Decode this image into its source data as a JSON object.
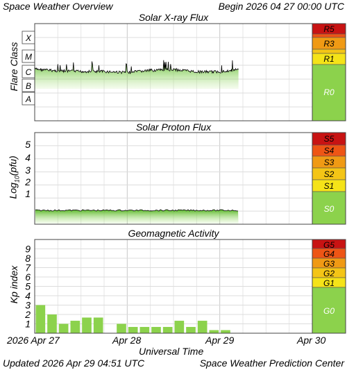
{
  "header": {
    "left": "Space Weather Overview",
    "right": "Begin 2026 04 27 00:00 UTC"
  },
  "footer": {
    "left": "Updated 2026 Apr 29 04:51 UTC",
    "right": "Space Weather Prediction Center"
  },
  "x_axis": {
    "label": "Universal Time",
    "tick_labels": [
      "2026 Apr 27",
      "Apr 28",
      "Apr 29",
      "Apr 30"
    ]
  },
  "colors": {
    "green": "#8cd24c",
    "yellow": "#f5e318",
    "orange": "#f09a14",
    "red_orange": "#ee5515",
    "red": "#c81313",
    "trace": "#000000"
  },
  "chart_data": [
    {
      "type": "line",
      "title": "Solar X-ray Flux",
      "ylabel": "Flare Class",
      "y_scale": "log",
      "y_tick_labels": [
        "X",
        "M",
        "C",
        "B",
        "A"
      ],
      "x_range": [
        "2026-04-27 00:00",
        "2026-04-30 00:00"
      ],
      "series": [
        {
          "x": [
            "2026-04-27 00:00",
            "2026-04-27 06:00",
            "2026-04-27 12:00",
            "2026-04-27 18:00",
            "2026-04-28 00:00",
            "2026-04-28 06:00",
            "2026-04-28 12:00",
            "2026-04-28 18:00",
            "2026-04-29 00:00",
            "2026-04-29 04:51"
          ],
          "values": [
            "C1.5",
            "C1.1",
            "C1.0",
            "C1.0",
            "B8.5",
            "C1.2",
            "C1.4",
            "B9.5",
            "B9.5",
            "C1.4"
          ]
        }
      ],
      "scale_labels": [
        "R5",
        "R3",
        "R1",
        "R0"
      ]
    },
    {
      "type": "line",
      "title": "Solar Proton Flux",
      "ylabel": "Log10(pfu)",
      "y_tick_labels": [
        "5",
        "4",
        "3",
        "2",
        "1"
      ],
      "ylim": [
        -1,
        6
      ],
      "x_range": [
        "2026-04-27 00:00",
        "2026-04-30 00:00"
      ],
      "series": [
        {
          "x": [
            "2026-04-27 00:00",
            "2026-04-28 00:00",
            "2026-04-29 00:00",
            "2026-04-29 04:51"
          ],
          "values": [
            -0.6,
            -0.6,
            -0.6,
            -0.6
          ]
        }
      ],
      "scale_labels": [
        "S5",
        "S4",
        "S3",
        "S2",
        "S1",
        "S0"
      ]
    },
    {
      "type": "bar",
      "title": "Geomagnetic Activity",
      "ylabel": "Kp index",
      "ylim": [
        0,
        10
      ],
      "y_tick_labels": [
        "9",
        "8",
        "7",
        "6",
        "5",
        "4",
        "3",
        "2",
        "1"
      ],
      "bar_interval_hours": 3,
      "values": [
        3.0,
        2.0,
        1.0,
        1.33,
        1.67,
        1.67,
        0,
        1.0,
        0.67,
        0.67,
        0.67,
        0.67,
        1.33,
        0.67,
        1.33,
        0.33,
        0.33
      ],
      "scale_labels": [
        "G5",
        "G4",
        "G3",
        "G2",
        "G1",
        "G0"
      ]
    }
  ]
}
